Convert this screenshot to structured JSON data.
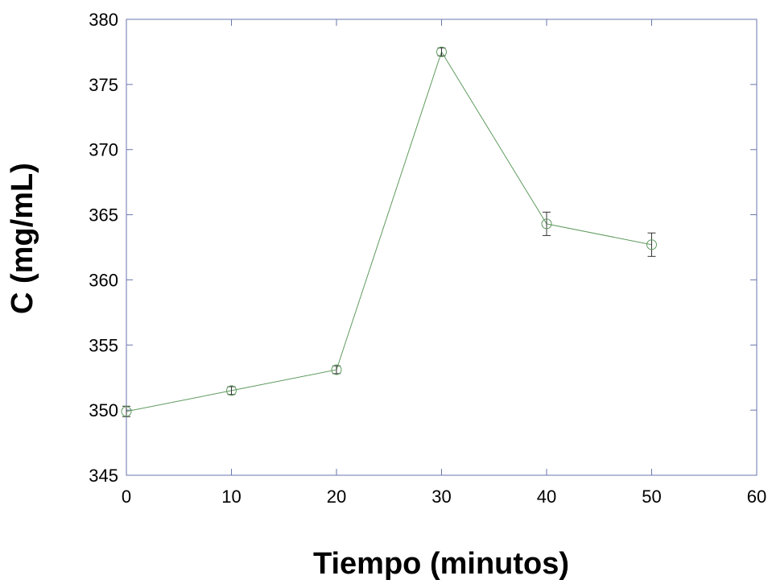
{
  "chart_data": {
    "type": "line",
    "xlabel": "Tiempo (minutos)",
    "ylabel": "C (mg/mL)",
    "xlim": [
      0,
      60
    ],
    "ylim": [
      345,
      380
    ],
    "x_ticks": [
      0,
      10,
      20,
      30,
      40,
      50,
      60
    ],
    "y_ticks": [
      345,
      350,
      355,
      360,
      365,
      370,
      375,
      380
    ],
    "grid": false,
    "series": [
      {
        "x": [
          0,
          10,
          20,
          30,
          40,
          50
        ],
        "y": [
          349.9,
          351.5,
          353.1,
          377.5,
          364.3,
          362.7
        ],
        "error": [
          0.4,
          0.3,
          0.3,
          0.3,
          0.9,
          0.9
        ],
        "marker": "open-circle",
        "color": "#5e9a5e"
      }
    ]
  },
  "colors": {
    "frame": "#6a76ad",
    "series": "#5e9a5e",
    "errorbar": "#333333"
  }
}
